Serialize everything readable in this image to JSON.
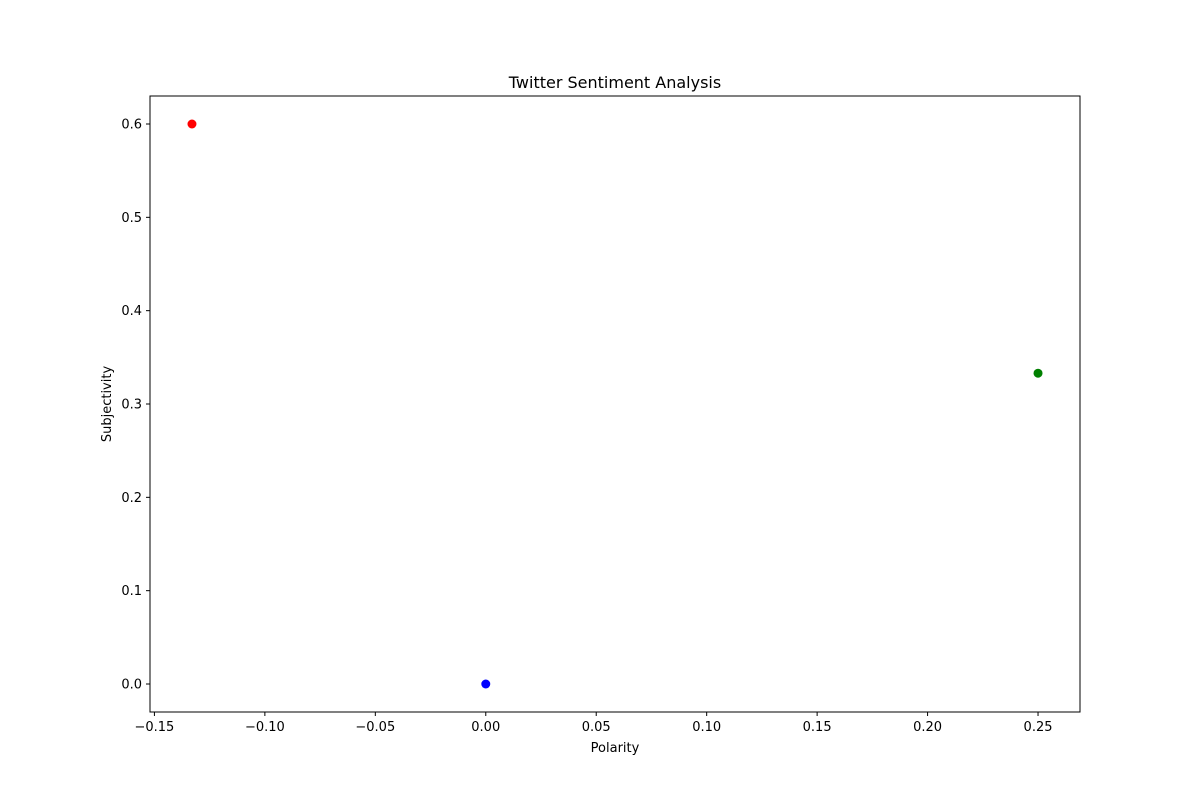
{
  "chart_data": {
    "type": "scatter",
    "title": "Twitter Sentiment Analysis",
    "xlabel": "Polarity",
    "ylabel": "Subjectivity",
    "xlim": [
      -0.152,
      0.269
    ],
    "ylim": [
      -0.03,
      0.63
    ],
    "x_ticks": [
      -0.15,
      -0.1,
      -0.05,
      0.0,
      0.05,
      0.1,
      0.15,
      0.2,
      0.25
    ],
    "x_tick_labels": [
      "−0.15",
      "−0.10",
      "−0.05",
      "0.00",
      "0.05",
      "0.10",
      "0.15",
      "0.20",
      "0.25"
    ],
    "y_ticks": [
      0.0,
      0.1,
      0.2,
      0.3,
      0.4,
      0.5,
      0.6
    ],
    "y_tick_labels": [
      "0.0",
      "0.1",
      "0.2",
      "0.3",
      "0.4",
      "0.5",
      "0.6"
    ],
    "grid": false,
    "legend": "none",
    "points": [
      {
        "x": -0.133,
        "y": 0.6,
        "color": "#ff0000"
      },
      {
        "x": 0.25,
        "y": 0.333,
        "color": "#008000"
      },
      {
        "x": 0.0,
        "y": 0.0,
        "color": "#0000ff"
      }
    ]
  }
}
